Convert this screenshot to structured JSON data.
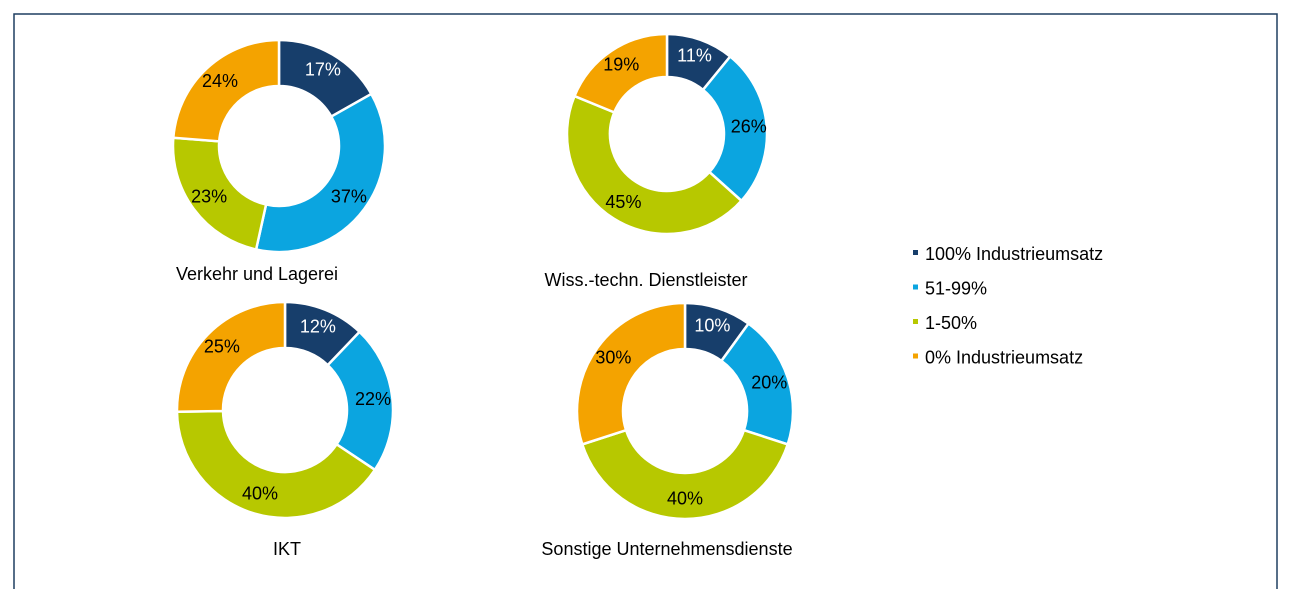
{
  "chart_data": [
    {
      "type": "donut",
      "title": "Verkehr und Lagerei",
      "categories": [
        "100% Industrieumsatz",
        "51-99%",
        "1-50%",
        "0% Industrieumsatz"
      ],
      "colors": [
        "#173e6b",
        "#0ba5e0",
        "#b7c800",
        "#f4a300"
      ],
      "values": [
        17,
        37,
        23,
        24
      ],
      "value_labels": [
        "17%",
        "37%",
        "23%",
        "24%"
      ]
    },
    {
      "type": "donut",
      "title": "Wiss.-techn. Dienstleister",
      "categories": [
        "100% Industrieumsatz",
        "51-99%",
        "1-50%",
        "0% Industrieumsatz"
      ],
      "colors": [
        "#173e6b",
        "#0ba5e0",
        "#b7c800",
        "#f4a300"
      ],
      "values": [
        11,
        26,
        45,
        19
      ],
      "value_labels": [
        "11%",
        "26%",
        "45%",
        "19%"
      ]
    },
    {
      "type": "donut",
      "title": "IKT",
      "categories": [
        "100% Industrieumsatz",
        "51-99%",
        "1-50%",
        "0% Industrieumsatz"
      ],
      "colors": [
        "#173e6b",
        "#0ba5e0",
        "#b7c800",
        "#f4a300"
      ],
      "values": [
        12,
        22,
        40,
        25
      ],
      "value_labels": [
        "12%",
        "22%",
        "40%",
        "25%"
      ]
    },
    {
      "type": "donut",
      "title": "Sonstige Unternehmensdienste",
      "categories": [
        "100% Industrieumsatz",
        "51-99%",
        "1-50%",
        "0% Industrieumsatz"
      ],
      "colors": [
        "#173e6b",
        "#0ba5e0",
        "#b7c800",
        "#f4a300"
      ],
      "values": [
        10,
        20,
        40,
        30
      ],
      "value_labels": [
        "10%",
        "20%",
        "40%",
        "30%"
      ]
    }
  ]
}
